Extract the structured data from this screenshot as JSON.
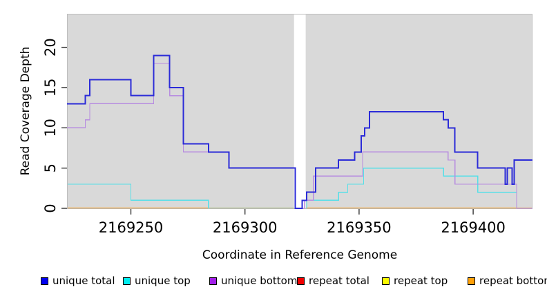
{
  "chart_data": {
    "type": "line",
    "subtype": "step",
    "title": "",
    "xlabel": "Coordinate in Reference Genome",
    "ylabel": "Read Coverage Depth",
    "xlim": [
      2169222,
      2169426
    ],
    "ylim": [
      0,
      24.2
    ],
    "x_ticks": [
      2169250,
      2169300,
      2169350,
      2169400
    ],
    "y_ticks": [
      0,
      5,
      10,
      15,
      20
    ],
    "grid": false,
    "legend_position": "bottom",
    "panel_bg": "#d9d9d9",
    "panel_border": "#bdbdbd",
    "no_data_band_x": [
      2169321.5,
      2169326.6
    ],
    "no_data_band_color": "#ffffff",
    "series": [
      {
        "name": "unique total",
        "z": 6,
        "line_color": "#2b2bd8",
        "swatch_color": "#0000f0",
        "line_width": 2,
        "points": [
          [
            2169222,
            13
          ],
          [
            2169230,
            14
          ],
          [
            2169232,
            16
          ],
          [
            2169250,
            14
          ],
          [
            2169260,
            19
          ],
          [
            2169267,
            15
          ],
          [
            2169273,
            8
          ],
          [
            2169284,
            7
          ],
          [
            2169293,
            5
          ],
          [
            2169322,
            0
          ],
          [
            2169325,
            1
          ],
          [
            2169327,
            2
          ],
          [
            2169331,
            5
          ],
          [
            2169341,
            6
          ],
          [
            2169348,
            7
          ],
          [
            2169351,
            9
          ],
          [
            2169352.5,
            10
          ],
          [
            2169354.5,
            12
          ],
          [
            2169387,
            11
          ],
          [
            2169389,
            10
          ],
          [
            2169392,
            7
          ],
          [
            2169402,
            5
          ],
          [
            2169414,
            3
          ],
          [
            2169415,
            5
          ],
          [
            2169417,
            3
          ],
          [
            2169418,
            6
          ],
          [
            2169426,
            6
          ]
        ]
      },
      {
        "name": "unique top",
        "z": 4,
        "line_color": "#55dfe8",
        "swatch_color": "#00eef0",
        "line_width": 1.3,
        "points": [
          [
            2169222,
            3
          ],
          [
            2169250,
            1
          ],
          [
            2169284,
            0
          ],
          [
            2169327,
            1
          ],
          [
            2169341,
            2
          ],
          [
            2169345,
            3
          ],
          [
            2169352,
            5
          ],
          [
            2169387,
            4
          ],
          [
            2169402,
            2
          ],
          [
            2169419,
            0
          ],
          [
            2169426,
            0
          ]
        ]
      },
      {
        "name": "unique bottom",
        "z": 5,
        "line_color": "#b78ce0",
        "swatch_color": "#a11fe8",
        "line_width": 1.3,
        "points": [
          [
            2169222,
            10
          ],
          [
            2169230,
            11
          ],
          [
            2169232,
            13
          ],
          [
            2169260,
            18
          ],
          [
            2169267,
            14
          ],
          [
            2169273,
            7
          ],
          [
            2169293,
            5
          ],
          [
            2169322,
            0
          ],
          [
            2169326,
            1
          ],
          [
            2169330,
            4
          ],
          [
            2169351.5,
            7
          ],
          [
            2169389,
            6
          ],
          [
            2169392,
            3
          ],
          [
            2169419,
            0
          ],
          [
            2169426,
            0
          ]
        ]
      },
      {
        "name": "repeat total",
        "z": 1,
        "line_color": "#e00000",
        "swatch_color": "#f00000",
        "line_width": 1.3,
        "points": [
          [
            2169222,
            0
          ],
          [
            2169426,
            0
          ]
        ]
      },
      {
        "name": "repeat top",
        "z": 2,
        "line_color": "#f5f500",
        "swatch_color": "#fafa00",
        "line_width": 1.3,
        "points": [
          [
            2169222,
            0
          ],
          [
            2169426,
            0
          ]
        ]
      },
      {
        "name": "repeat bottom",
        "z": 3,
        "line_color": "#ff9b12",
        "swatch_color": "#ffa008",
        "line_width": 1.7,
        "points": [
          [
            2169222,
            0
          ],
          [
            2169426,
            0
          ]
        ]
      }
    ]
  }
}
